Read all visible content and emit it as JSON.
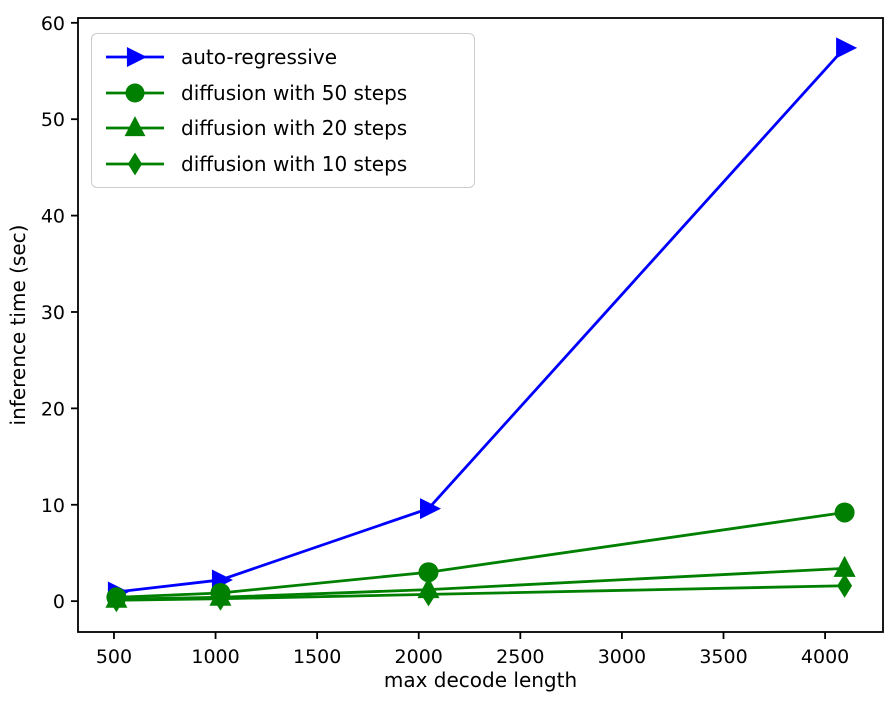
{
  "chart_data": {
    "type": "line",
    "title": "",
    "xlabel": "max decode length",
    "ylabel": "inference time (sec)",
    "x": [
      512,
      1024,
      2048,
      4096
    ],
    "series": [
      {
        "name": "auto-regressive",
        "color": "#0000ff",
        "marker": "triangle-right",
        "values": [
          0.95,
          2.2,
          9.6,
          57.4
        ]
      },
      {
        "name": "diffusion with 50 steps",
        "color": "#008000",
        "marker": "circle",
        "values": [
          0.4,
          0.85,
          3.0,
          9.2
        ]
      },
      {
        "name": "diffusion with 20 steps",
        "color": "#008000",
        "marker": "triangle-up",
        "values": [
          0.2,
          0.4,
          1.2,
          3.4
        ]
      },
      {
        "name": "diffusion with 10 steps",
        "color": "#008000",
        "marker": "diamond",
        "values": [
          0.1,
          0.25,
          0.7,
          1.6
        ]
      }
    ],
    "xticks": [
      500,
      1000,
      1500,
      2000,
      2500,
      3000,
      3500,
      4000
    ],
    "yticks": [
      0,
      10,
      20,
      30,
      40,
      50,
      60
    ],
    "xlim": [
      323,
      4285
    ],
    "ylim": [
      -3.2,
      60.5
    ],
    "legend_position": "upper-left",
    "grid": false,
    "axis_color": "#000000",
    "background_color": "#ffffff"
  }
}
